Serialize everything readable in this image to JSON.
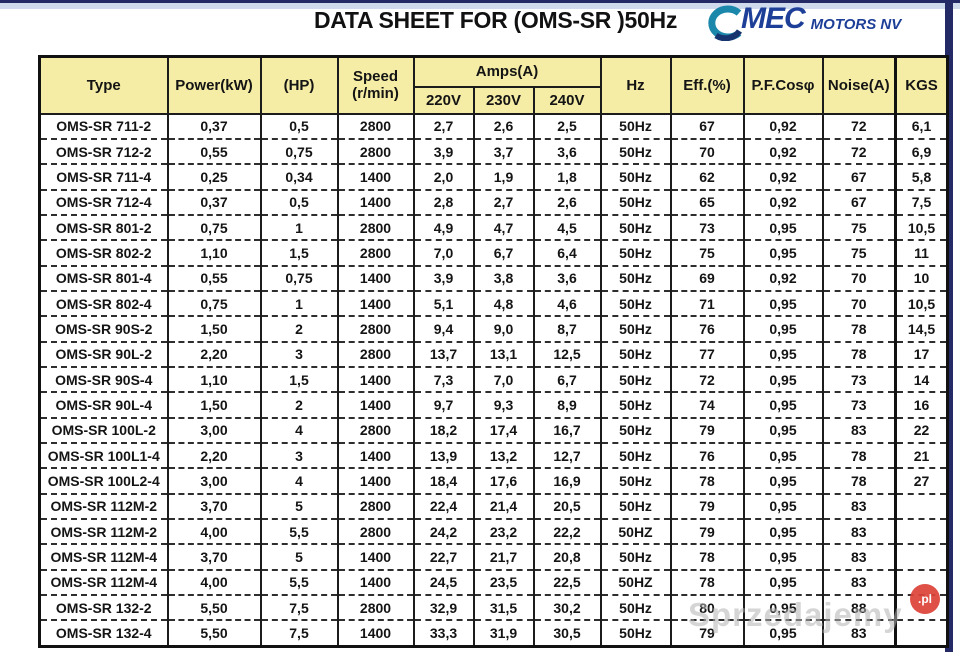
{
  "page": {
    "title": "DATA SHEET FOR (OMS-SR )50Hz"
  },
  "brand": {
    "name": "MEC",
    "suffix": "MOTORS NV"
  },
  "watermark": {
    "text": "Sprzedajemy",
    "badge": ".pl"
  },
  "colors": {
    "header-bg": "#f5eda6",
    "navy": "#232a66",
    "lightblue": "#cfdaec",
    "logo-teal": "#1b87ab",
    "logo-navy": "#16356f",
    "logo-text": "#1d3f97",
    "wm-red": "#dd4238"
  },
  "table": {
    "headers": {
      "type": "Type",
      "power": "Power(kW)",
      "hp": "(HP)",
      "speed_line1": "Speed",
      "speed_line2": "(r/min)",
      "amps": "Amps(A)",
      "volts": [
        "220V",
        "230V",
        "240V"
      ],
      "hz": "Hz",
      "eff": "Eff.(%)",
      "pf": "P.F.Cosφ",
      "noise": "Noise(A)",
      "kgs": "KGS"
    },
    "column_keys": [
      "type",
      "power-kw",
      "hp",
      "speed",
      "amps-220v",
      "amps-230v",
      "amps-240v",
      "hz",
      "eff-pct",
      "pf-cos-phi",
      "noise-a",
      "kgs"
    ],
    "rows": [
      [
        "OMS-SR 711-2",
        "0,37",
        "0,5",
        "2800",
        "2,7",
        "2,6",
        "2,5",
        "50Hz",
        "67",
        "0,92",
        "72",
        "6,1"
      ],
      [
        "OMS-SR 712-2",
        "0,55",
        "0,75",
        "2800",
        "3,9",
        "3,7",
        "3,6",
        "50Hz",
        "70",
        "0,92",
        "72",
        "6,9"
      ],
      [
        "OMS-SR 711-4",
        "0,25",
        "0,34",
        "1400",
        "2,0",
        "1,9",
        "1,8",
        "50Hz",
        "62",
        "0,92",
        "67",
        "5,8"
      ],
      [
        "OMS-SR 712-4",
        "0,37",
        "0,5",
        "1400",
        "2,8",
        "2,7",
        "2,6",
        "50Hz",
        "65",
        "0,92",
        "67",
        "7,5"
      ],
      [
        "OMS-SR 801-2",
        "0,75",
        "1",
        "2800",
        "4,9",
        "4,7",
        "4,5",
        "50Hz",
        "73",
        "0,95",
        "75",
        "10,5"
      ],
      [
        "OMS-SR 802-2",
        "1,10",
        "1,5",
        "2800",
        "7,0",
        "6,7",
        "6,4",
        "50Hz",
        "75",
        "0,95",
        "75",
        "11"
      ],
      [
        "OMS-SR 801-4",
        "0,55",
        "0,75",
        "1400",
        "3,9",
        "3,8",
        "3,6",
        "50Hz",
        "69",
        "0,92",
        "70",
        "10"
      ],
      [
        "OMS-SR 802-4",
        "0,75",
        "1",
        "1400",
        "5,1",
        "4,8",
        "4,6",
        "50Hz",
        "71",
        "0,95",
        "70",
        "10,5"
      ],
      [
        "OMS-SR 90S-2",
        "1,50",
        "2",
        "2800",
        "9,4",
        "9,0",
        "8,7",
        "50Hz",
        "76",
        "0,95",
        "78",
        "14,5"
      ],
      [
        "OMS-SR 90L-2",
        "2,20",
        "3",
        "2800",
        "13,7",
        "13,1",
        "12,5",
        "50Hz",
        "77",
        "0,95",
        "78",
        "17"
      ],
      [
        "OMS-SR 90S-4",
        "1,10",
        "1,5",
        "1400",
        "7,3",
        "7,0",
        "6,7",
        "50Hz",
        "72",
        "0,95",
        "73",
        "14"
      ],
      [
        "OMS-SR 90L-4",
        "1,50",
        "2",
        "1400",
        "9,7",
        "9,3",
        "8,9",
        "50Hz",
        "74",
        "0,95",
        "73",
        "16"
      ],
      [
        "OMS-SR 100L-2",
        "3,00",
        "4",
        "2800",
        "18,2",
        "17,4",
        "16,7",
        "50Hz",
        "79",
        "0,95",
        "83",
        "22"
      ],
      [
        "OMS-SR 100L1-4",
        "2,20",
        "3",
        "1400",
        "13,9",
        "13,2",
        "12,7",
        "50Hz",
        "76",
        "0,95",
        "78",
        "21"
      ],
      [
        "OMS-SR 100L2-4",
        "3,00",
        "4",
        "1400",
        "18,4",
        "17,6",
        "16,9",
        "50Hz",
        "78",
        "0,95",
        "78",
        "27"
      ],
      [
        "OMS-SR 112M-2",
        "3,70",
        "5",
        "2800",
        "22,4",
        "21,4",
        "20,5",
        "50Hz",
        "79",
        "0,95",
        "83",
        ""
      ],
      [
        "OMS-SR 112M-2",
        "4,00",
        "5,5",
        "2800",
        "24,2",
        "23,2",
        "22,2",
        "50HZ",
        "79",
        "0,95",
        "83",
        ""
      ],
      [
        "OMS-SR 112M-4",
        "3,70",
        "5",
        "1400",
        "22,7",
        "21,7",
        "20,8",
        "50Hz",
        "78",
        "0,95",
        "83",
        ""
      ],
      [
        "OMS-SR 112M-4",
        "4,00",
        "5,5",
        "1400",
        "24,5",
        "23,5",
        "22,5",
        "50HZ",
        "78",
        "0,95",
        "83",
        ""
      ],
      [
        "OMS-SR 132-2",
        "5,50",
        "7,5",
        "2800",
        "32,9",
        "31,5",
        "30,2",
        "50Hz",
        "80",
        "0,95",
        "88",
        ""
      ],
      [
        "OMS-SR 132-4",
        "5,50",
        "7,5",
        "1400",
        "33,3",
        "31,9",
        "30,5",
        "50Hz",
        "79",
        "0,95",
        "83",
        ""
      ]
    ]
  }
}
